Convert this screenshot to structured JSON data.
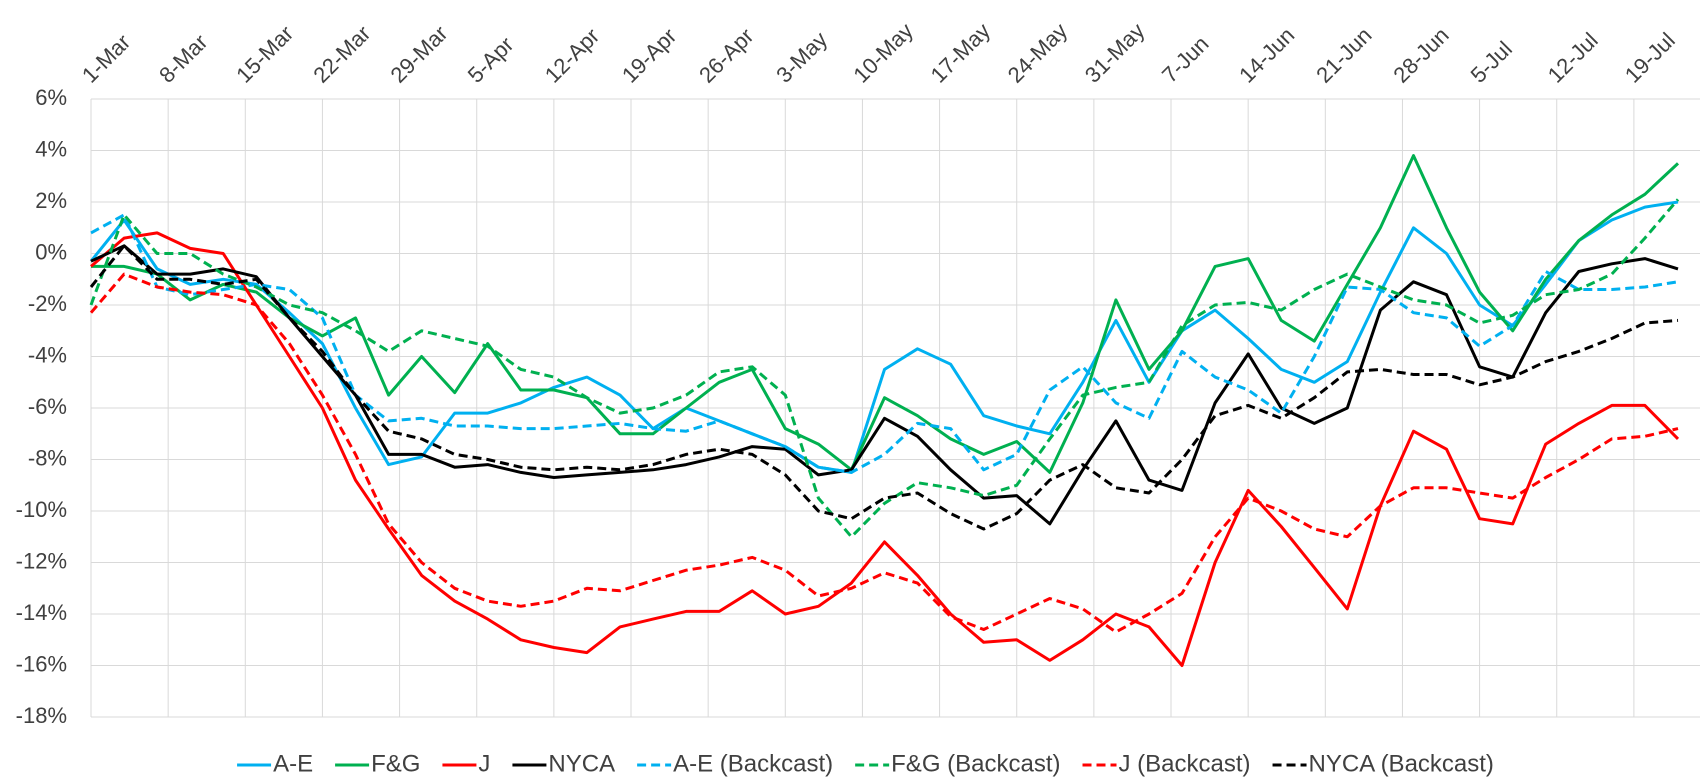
{
  "chart_data": {
    "type": "line",
    "x": [
      0,
      3,
      6,
      9,
      12,
      15,
      18,
      21,
      24,
      27,
      30,
      33,
      36,
      39,
      42,
      45,
      48,
      51,
      54,
      57,
      60,
      63,
      66,
      69,
      72,
      75,
      78,
      81,
      84,
      87,
      90,
      93,
      96,
      99,
      102,
      105,
      108,
      111,
      114,
      117,
      120,
      123,
      126,
      129,
      132,
      135,
      138,
      141,
      144
    ],
    "xlim": [
      0,
      146
    ],
    "xticks": [
      {
        "value": 0,
        "label": "1-Mar"
      },
      {
        "value": 7,
        "label": "8-Mar"
      },
      {
        "value": 14,
        "label": "15-Mar"
      },
      {
        "value": 21,
        "label": "22-Mar"
      },
      {
        "value": 28,
        "label": "29-Mar"
      },
      {
        "value": 35,
        "label": "5-Apr"
      },
      {
        "value": 42,
        "label": "12-Apr"
      },
      {
        "value": 49,
        "label": "19-Apr"
      },
      {
        "value": 56,
        "label": "26-Apr"
      },
      {
        "value": 63,
        "label": "3-May"
      },
      {
        "value": 70,
        "label": "10-May"
      },
      {
        "value": 77,
        "label": "17-May"
      },
      {
        "value": 84,
        "label": "24-May"
      },
      {
        "value": 91,
        "label": "31-May"
      },
      {
        "value": 98,
        "label": "7-Jun"
      },
      {
        "value": 105,
        "label": "14-Jun"
      },
      {
        "value": 112,
        "label": "21-Jun"
      },
      {
        "value": 119,
        "label": "28-Jun"
      },
      {
        "value": 126,
        "label": "5-Jul"
      },
      {
        "value": 133,
        "label": "12-Jul"
      },
      {
        "value": 140,
        "label": "19-Jul"
      }
    ],
    "ylim": [
      -18,
      6
    ],
    "yticks": [
      {
        "value": -18,
        "label": "-18%"
      },
      {
        "value": -16,
        "label": "-16%"
      },
      {
        "value": -14,
        "label": "-14%"
      },
      {
        "value": -12,
        "label": "-12%"
      },
      {
        "value": -10,
        "label": "-10%"
      },
      {
        "value": -8,
        "label": "-8%"
      },
      {
        "value": -6,
        "label": "-6%"
      },
      {
        "value": -4,
        "label": "-4%"
      },
      {
        "value": -2,
        "label": "-2%"
      },
      {
        "value": 0,
        "label": "0%"
      },
      {
        "value": 2,
        "label": "2%"
      },
      {
        "value": 4,
        "label": "4%"
      },
      {
        "value": 6,
        "label": "6%"
      }
    ],
    "grid": true,
    "legend": "bottom",
    "series": [
      {
        "name": "A-E",
        "color": "#00b0f0",
        "dashed": false,
        "values": [
          -0.3,
          1.3,
          -0.6,
          -1.2,
          -1.0,
          -1.2,
          -2.3,
          -3.5,
          -6,
          -8.2,
          -7.9,
          -6.2,
          -6.2,
          -5.8,
          -5.2,
          -4.8,
          -5.5,
          -6.8,
          -6.0,
          -6.5,
          -7.0,
          -7.5,
          -8.3,
          -8.5,
          -4.5,
          -3.7,
          -4.3,
          -6.3,
          -6.7,
          -7.0,
          -5,
          -2.6,
          -5.0,
          -3,
          -2.2,
          -3.3,
          -4.5,
          -5.0,
          -4.2,
          -1.5,
          1.0,
          0,
          -2,
          -2.8,
          -1.2,
          0.5,
          1.3,
          1.8,
          2.0
        ]
      },
      {
        "name": "F&G",
        "color": "#00b050",
        "dashed": false,
        "values": [
          -0.5,
          -0.5,
          -0.8,
          -1.8,
          -1.2,
          -1.5,
          -2.5,
          -3.2,
          -2.5,
          -5.5,
          -4.0,
          -5.4,
          -3.5,
          -5.3,
          -5.3,
          -5.6,
          -7.0,
          -7.0,
          -6.0,
          -5.0,
          -4.5,
          -6.8,
          -7.4,
          -8.4,
          -5.6,
          -6.3,
          -7.2,
          -7.8,
          -7.3,
          -8.5,
          -5.8,
          -1.8,
          -4.5,
          -3.0,
          -0.5,
          -0.2,
          -2.6,
          -3.4,
          -1.2,
          1.0,
          3.8,
          1.0,
          -1.5,
          -3.0,
          -1.0,
          0.5,
          1.5,
          2.3,
          3.5
        ]
      },
      {
        "name": "J",
        "color": "#ff0000",
        "dashed": false,
        "values": [
          -0.5,
          0.6,
          0.8,
          0.2,
          0,
          -2.0,
          -4.0,
          -6.0,
          -8.8,
          -10.7,
          -12.5,
          -13.5,
          -14.2,
          -15.0,
          -15.3,
          -15.5,
          -14.5,
          -14.2,
          -13.9,
          -13.9,
          -13.1,
          -14.0,
          -13.7,
          -12.8,
          -11.2,
          -12.5,
          -14.0,
          -15.1,
          -15.0,
          -15.8,
          -15.0,
          -14.0,
          -14.5,
          -16.0,
          -12.0,
          -9.2,
          -10.6,
          -12.2,
          -13.8,
          -9.8,
          -6.9,
          -7.6,
          -10.3,
          -10.5,
          -7.4,
          -6.6,
          -5.9,
          -5.9,
          -7.2
        ]
      },
      {
        "name": "NYCA",
        "color": "#000000",
        "dashed": false,
        "values": [
          -0.3,
          0.3,
          -0.8,
          -0.8,
          -0.6,
          -0.9,
          -2.5,
          -4,
          -5.5,
          -7.8,
          -7.8,
          -8.3,
          -8.2,
          -8.5,
          -8.7,
          -8.6,
          -8.5,
          -8.4,
          -8.2,
          -7.9,
          -7.5,
          -7.6,
          -8.6,
          -8.4,
          -6.4,
          -7.1,
          -8.4,
          -9.5,
          -9.4,
          -10.5,
          -8.4,
          -6.5,
          -8.8,
          -9.2,
          -5.8,
          -3.9,
          -6.0,
          -6.6,
          -6.0,
          -2.2,
          -1.1,
          -1.6,
          -4.4,
          -4.8,
          -2.3,
          -0.7,
          -0.4,
          -0.2,
          -0.6
        ]
      },
      {
        "name": "A-E (Backcast)",
        "color": "#00b0f0",
        "dashed": true,
        "values": [
          0.8,
          1.5,
          -1.3,
          -1.6,
          -1.4,
          -1.2,
          -1.4,
          -2.5,
          -5.5,
          -6.5,
          -6.4,
          -6.7,
          -6.7,
          -6.8,
          -6.8,
          -6.7,
          -6.6,
          -6.8,
          -6.9,
          -6.5,
          -7.0,
          -7.5,
          -8.3,
          -8.5,
          -7.8,
          -6.6,
          -6.8,
          -8.4,
          -7.8,
          -5.3,
          -4.4,
          -5.8,
          -6.4,
          -3.8,
          -4.8,
          -5.3,
          -6.2,
          -4.0,
          -1.3,
          -1.4,
          -2.3,
          -2.5,
          -3.6,
          -2.8,
          -0.7,
          -1.4,
          -1.4,
          -1.3,
          -1.1
        ]
      },
      {
        "name": "F&G (Backcast)",
        "color": "#00b050",
        "dashed": true,
        "values": [
          -2.0,
          1.5,
          0,
          0,
          -0.8,
          -1.3,
          -2.0,
          -2.3,
          -3.0,
          -3.8,
          -3.0,
          -3.3,
          -3.6,
          -4.5,
          -4.8,
          -5.6,
          -6.2,
          -6.0,
          -5.5,
          -4.6,
          -4.4,
          -5.5,
          -9.5,
          -11.0,
          -9.7,
          -8.9,
          -9.1,
          -9.4,
          -9.0,
          -7.2,
          -5.5,
          -5.2,
          -5.0,
          -2.8,
          -2.0,
          -1.9,
          -2.2,
          -1.4,
          -0.8,
          -1.3,
          -1.8,
          -2.0,
          -2.7,
          -2.4,
          -1.6,
          -1.4,
          -0.8,
          0.6,
          2.1
        ]
      },
      {
        "name": "J (Backcast)",
        "color": "#ff0000",
        "dashed": true,
        "values": [
          -2.3,
          -0.8,
          -1.3,
          -1.5,
          -1.6,
          -2.0,
          -3.5,
          -5.5,
          -7.8,
          -10.5,
          -12.0,
          -13.0,
          -13.5,
          -13.7,
          -13.5,
          -13.0,
          -13.1,
          -12.7,
          -12.3,
          -12.1,
          -11.8,
          -12.3,
          -13.3,
          -13.0,
          -12.4,
          -12.8,
          -14.1,
          -14.6,
          -14.0,
          -13.4,
          -13.8,
          -14.7,
          -14.0,
          -13.2,
          -11.0,
          -9.5,
          -10.0,
          -10.7,
          -11.0,
          -9.8,
          -9.1,
          -9.1,
          -9.3,
          -9.5,
          -8.7,
          -8.0,
          -7.2,
          -7.1,
          -6.8
        ]
      },
      {
        "name": "NYCA (Backcast)",
        "color": "#000000",
        "dashed": true,
        "values": [
          -1.3,
          0.3,
          -1.0,
          -1.0,
          -1.2,
          -1.0,
          -2.5,
          -3.8,
          -5.5,
          -6.9,
          -7.2,
          -7.8,
          -8.0,
          -8.3,
          -8.4,
          -8.3,
          -8.4,
          -8.2,
          -7.8,
          -7.6,
          -7.8,
          -8.6,
          -10.0,
          -10.3,
          -9.5,
          -9.3,
          -10.1,
          -10.7,
          -10.1,
          -8.8,
          -8.2,
          -9.1,
          -9.3,
          -8.0,
          -6.3,
          -5.9,
          -6.4,
          -5.6,
          -4.6,
          -4.5,
          -4.7,
          -4.7,
          -5.1,
          -4.8,
          -4.2,
          -3.8,
          -3.3,
          -2.7,
          -2.6
        ]
      }
    ]
  }
}
